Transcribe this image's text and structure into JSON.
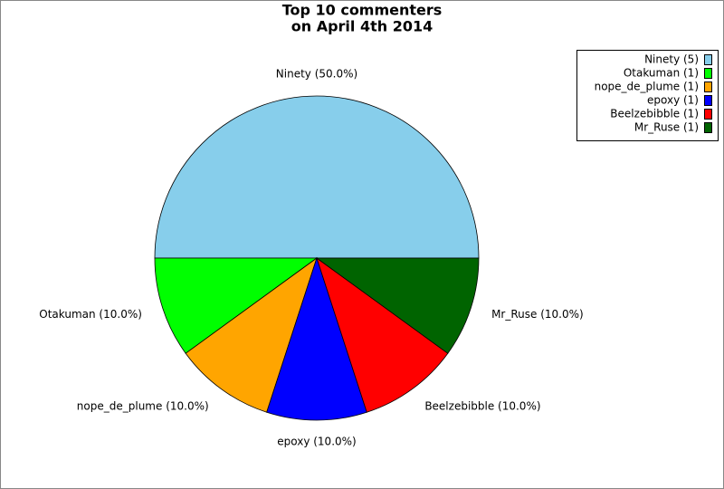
{
  "chart_data": {
    "type": "pie",
    "title": [
      "Top 10 commenters",
      "on April 4th 2014"
    ],
    "categories": [
      "Ninety",
      "Otakuman",
      "nope_de_plume",
      "epoxy",
      "Beelzebibble",
      "Mr_Ruse"
    ],
    "values": [
      50,
      10,
      10,
      10,
      10,
      10
    ],
    "value_labels": [
      "Ninety (50.0%)",
      "Otakuman (10.0%)",
      "nope_de_plume (10.0%)",
      "epoxy (10.0%)",
      "Beelzebibble (10.0%)",
      "Mr_Ruse (10.0%)"
    ],
    "legend_labels": [
      "Ninety (5)",
      "Otakuman (1)",
      "nope_de_plume (1)",
      "epoxy (1)",
      "Beelzebibble (1)",
      "Mr_Ruse (1)"
    ],
    "colors": [
      "#87ceeb",
      "#00ff00",
      "#ffa500",
      "#0000ff",
      "#ff0000",
      "#006400"
    ],
    "legend": "upper right"
  }
}
